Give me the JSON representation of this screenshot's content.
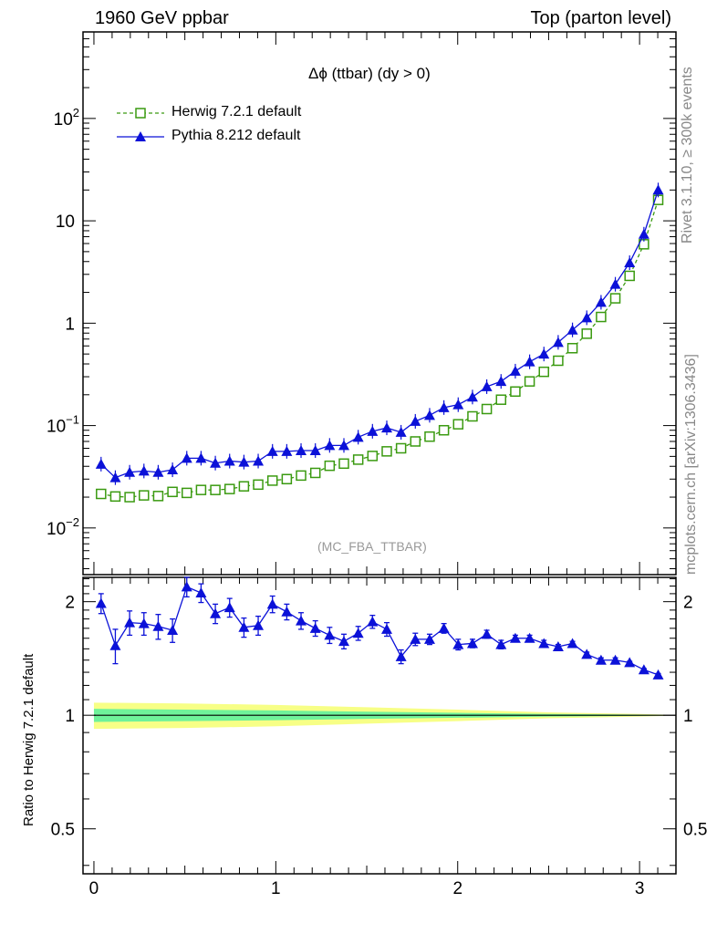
{
  "header": {
    "left": "1960 GeV ppbar",
    "right": "Top (parton level)"
  },
  "plot_title": "Δϕ (ttbar) (dy > 0)",
  "watermark": "(MC_FBA_TTBAR)",
  "side_labels": {
    "rivet": "Rivet 3.1.10, ≥ 300k events",
    "source": "mcplots.cern.ch [arXiv:1306.3436]"
  },
  "ratio_ylabel": "Ratio to Herwig 7.2.1 default",
  "colors": {
    "herwig": "#3a9a10",
    "pythia": "#0b11d8",
    "band_inner": "#6ff29a",
    "band_outer": "#f7ff86"
  },
  "chart_data": [
    {
      "type": "line",
      "title": "Δϕ (ttbar) (dy > 0)",
      "yscale": "log",
      "xlim": [
        -0.06,
        3.2
      ],
      "ylim": [
        0.0035,
        700
      ],
      "y_ticks": [
        {
          "value": 100,
          "label": "10",
          "exp": "2"
        },
        {
          "value": 10,
          "label": "10",
          "exp": ""
        },
        {
          "value": 1,
          "label": "1",
          "exp": ""
        },
        {
          "value": 0.1,
          "label": "10",
          "exp": "−1"
        },
        {
          "value": 0.01,
          "label": "10",
          "exp": "−2"
        }
      ],
      "legend_position": "top-left",
      "x": [
        0.0393,
        0.1178,
        0.1963,
        0.2749,
        0.3534,
        0.432,
        0.5105,
        0.589,
        0.6676,
        0.7461,
        0.8247,
        0.9032,
        0.9817,
        1.0603,
        1.1388,
        1.2174,
        1.2959,
        1.3744,
        1.453,
        1.5315,
        1.6101,
        1.6886,
        1.7671,
        1.8457,
        1.9242,
        2.0028,
        2.0813,
        2.1598,
        2.2384,
        2.3169,
        2.3955,
        2.474,
        2.5525,
        2.6311,
        2.7096,
        2.7882,
        2.8667,
        2.9452,
        3.0238,
        3.1023
      ],
      "series": [
        {
          "name": "Herwig 7.2.1 default",
          "color": "#3a9a10",
          "marker": "open-square",
          "line": "dashed",
          "values": [
            0.0215,
            0.0203,
            0.02,
            0.0208,
            0.0205,
            0.0225,
            0.022,
            0.0235,
            0.0235,
            0.024,
            0.0255,
            0.0265,
            0.029,
            0.03,
            0.0325,
            0.0345,
            0.0405,
            0.0425,
            0.0465,
            0.0505,
            0.056,
            0.06,
            0.07,
            0.078,
            0.09,
            0.103,
            0.123,
            0.145,
            0.179,
            0.215,
            0.27,
            0.335,
            0.43,
            0.57,
            0.79,
            1.15,
            1.75,
            2.9,
            5.9,
            16.0
          ]
        },
        {
          "name": "Pythia 8.212 default",
          "color": "#0b11d8",
          "marker": "filled-triangle",
          "line": "solid",
          "values": [
            0.042,
            0.031,
            0.035,
            0.036,
            0.035,
            0.037,
            0.048,
            0.048,
            0.043,
            0.045,
            0.044,
            0.045,
            0.056,
            0.056,
            0.057,
            0.057,
            0.064,
            0.064,
            0.077,
            0.088,
            0.095,
            0.086,
            0.11,
            0.126,
            0.15,
            0.16,
            0.19,
            0.24,
            0.27,
            0.34,
            0.42,
            0.5,
            0.65,
            0.86,
            1.13,
            1.6,
            2.4,
            3.9,
            7.4,
            20.0
          ]
        }
      ]
    },
    {
      "type": "line",
      "ylabel": "Ratio to Herwig 7.2.1 default",
      "xlim": [
        -0.06,
        3.2
      ],
      "ylim": [
        0.38,
        2.32
      ],
      "y_ticks": [
        {
          "value": 2,
          "label": "2"
        },
        {
          "value": 1,
          "label": "1"
        },
        {
          "value": 0.5,
          "label": "0.5"
        }
      ],
      "x_ticks": [
        {
          "value": 0,
          "label": "0"
        },
        {
          "value": 1,
          "label": "1"
        },
        {
          "value": 2,
          "label": "2"
        },
        {
          "value": 3,
          "label": "3"
        }
      ],
      "reference_line": 1,
      "band": {
        "x": [
          0.0,
          0.5,
          1.0,
          1.5,
          2.0,
          2.5,
          3.0,
          3.14
        ],
        "inner_lo": [
          0.96,
          0.965,
          0.97,
          0.978,
          0.985,
          0.992,
          0.996,
          0.998
        ],
        "inner_hi": [
          1.04,
          1.035,
          1.03,
          1.022,
          1.015,
          1.008,
          1.004,
          1.002
        ],
        "outer_lo": [
          0.92,
          0.925,
          0.935,
          0.95,
          0.965,
          0.982,
          0.992,
          0.996
        ],
        "outer_hi": [
          1.08,
          1.075,
          1.065,
          1.05,
          1.035,
          1.018,
          1.008,
          1.004
        ]
      },
      "series": [
        {
          "name": "Pythia 8.212 default",
          "color": "#0b11d8",
          "marker": "filled-triangle",
          "values": [
            1.98,
            1.53,
            1.76,
            1.75,
            1.72,
            1.68,
            2.19,
            2.11,
            1.86,
            1.93,
            1.71,
            1.73,
            1.97,
            1.88,
            1.78,
            1.7,
            1.63,
            1.57,
            1.65,
            1.77,
            1.69,
            1.43,
            1.59,
            1.59,
            1.7,
            1.54,
            1.55,
            1.64,
            1.54,
            1.6,
            1.6,
            1.55,
            1.52,
            1.55,
            1.45,
            1.4,
            1.4,
            1.38,
            1.32,
            1.28
          ],
          "err": [
            0.12,
            0.16,
            0.13,
            0.12,
            0.13,
            0.12,
            0.13,
            0.12,
            0.11,
            0.11,
            0.1,
            0.1,
            0.1,
            0.09,
            0.09,
            0.08,
            0.08,
            0.07,
            0.07,
            0.07,
            0.07,
            0.06,
            0.06,
            0.05,
            0.05,
            0.05,
            0.04,
            0.04,
            0.04,
            0.03,
            0.03,
            0.03,
            0.02,
            0.02,
            0.02,
            0.02,
            0.02,
            0.01,
            0.01,
            0.01
          ]
        }
      ]
    }
  ]
}
